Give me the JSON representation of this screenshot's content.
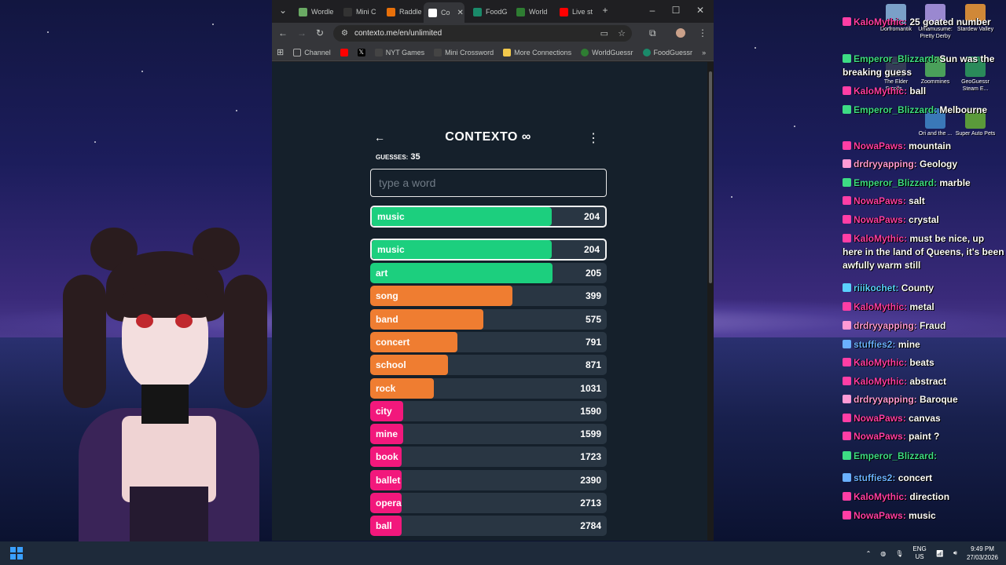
{
  "browser": {
    "tabs": [
      {
        "label": "Wordle",
        "color": "#6aaa64"
      },
      {
        "label": "Mini C",
        "color": "#333333"
      },
      {
        "label": "Raddle",
        "color": "#e8700a"
      },
      {
        "label": "Co",
        "color": "#ffffff"
      },
      {
        "label": "FoodG",
        "color": "#1a8a6a"
      },
      {
        "label": "World",
        "color": "#2e7d32"
      },
      {
        "label": "Live st",
        "color": "#ff0000"
      }
    ],
    "url": "contexto.me/en/unlimited",
    "bookmarks": [
      {
        "label": "Channel",
        "color": "#777777"
      },
      {
        "label": "",
        "color": "#ff0000"
      },
      {
        "label": "",
        "color": "#000000"
      },
      {
        "label": "NYT Games",
        "color": "#222222"
      },
      {
        "label": "Mini Crossword",
        "color": "#222222"
      },
      {
        "label": "More Connections",
        "color": "#f2c94c"
      },
      {
        "label": "WorldGuessr",
        "color": "#2e7d32"
      },
      {
        "label": "FoodGuessr",
        "color": "#1a8a6a"
      }
    ]
  },
  "app": {
    "title": "CONTEXTO ∞",
    "guesses_label": "GUESSES:",
    "guesses_count": "35",
    "input_placeholder": "type a word",
    "last_guess": {
      "word": "music",
      "rank": "204",
      "fill": 0.77,
      "color": "#1ccf7e"
    },
    "guesses": [
      {
        "word": "music",
        "rank": "204",
        "fill": 0.77,
        "color": "#1ccf7e",
        "highlight": true
      },
      {
        "word": "art",
        "rank": "205",
        "fill": 0.77,
        "color": "#1ccf7e"
      },
      {
        "word": "song",
        "rank": "399",
        "fill": 0.6,
        "color": "#ef7d31"
      },
      {
        "word": "band",
        "rank": "575",
        "fill": 0.48,
        "color": "#ef7d31"
      },
      {
        "word": "concert",
        "rank": "791",
        "fill": 0.37,
        "color": "#ef7d31"
      },
      {
        "word": "school",
        "rank": "871",
        "fill": 0.33,
        "color": "#ef7d31"
      },
      {
        "word": "rock",
        "rank": "1031",
        "fill": 0.27,
        "color": "#ef7d31"
      },
      {
        "word": "city",
        "rank": "1590",
        "fill": 0.14,
        "color": "#f2187c"
      },
      {
        "word": "mine",
        "rank": "1599",
        "fill": 0.14,
        "color": "#f2187c"
      },
      {
        "word": "book",
        "rank": "1723",
        "fill": 0.12,
        "color": "#f2187c"
      },
      {
        "word": "ballet",
        "rank": "2390",
        "fill": 0.05,
        "color": "#f2187c"
      },
      {
        "word": "opera",
        "rank": "2713",
        "fill": 0.04,
        "color": "#f2187c"
      },
      {
        "word": "ball",
        "rank": "2784",
        "fill": 0.03,
        "color": "#f2187c"
      }
    ]
  },
  "chat": [
    {
      "user": "KaloMythic:",
      "text": "25 goated number",
      "color": "#ff3ea5"
    },
    {
      "user": "Emperor_Blizzard:",
      "text": "Sun was the breaking guess",
      "color": "#3ddc84"
    },
    {
      "user": "KaloMythic:",
      "text": "ball",
      "color": "#ff3ea5"
    },
    {
      "user": "Emperor_Blizzard:",
      "text": "Melbourne",
      "color": "#3ddc84"
    },
    {
      "user": "NowaPaws:",
      "text": "mountain",
      "color": "#ff3ea5"
    },
    {
      "user": "drdryyapping:",
      "text": "Geology",
      "color": "#ff9ad5"
    },
    {
      "user": "Emperor_Blizzard:",
      "text": "marble",
      "color": "#3ddc84"
    },
    {
      "user": "NowaPaws:",
      "text": "salt",
      "color": "#ff3ea5"
    },
    {
      "user": "NowaPaws:",
      "text": "crystal",
      "color": "#ff3ea5"
    },
    {
      "user": "KaloMythic:",
      "text": "must be nice, up here in the land of Queens, it's been awfully warm still",
      "color": "#ff3ea5"
    },
    {
      "user": "riiikochet:",
      "text": "County",
      "color": "#5ad1ff"
    },
    {
      "user": "KaloMythic:",
      "text": "metal",
      "color": "#ff3ea5"
    },
    {
      "user": "drdryyapping:",
      "text": "Fraud",
      "color": "#ff9ad5"
    },
    {
      "user": "stuffies2:",
      "text": "mine",
      "color": "#6ab0ff"
    },
    {
      "user": "KaloMythic:",
      "text": "beats",
      "color": "#ff3ea5"
    },
    {
      "user": "KaloMythic:",
      "text": "abstract",
      "color": "#ff3ea5"
    },
    {
      "user": "drdryyapping:",
      "text": "Baroque",
      "color": "#ff9ad5"
    },
    {
      "user": "NowaPaws:",
      "text": "canvas",
      "color": "#ff3ea5"
    },
    {
      "user": "NowaPaws:",
      "text": "paint ?",
      "color": "#ff3ea5"
    },
    {
      "user": "Emperor_Blizzard:",
      "text": "",
      "color": "#3ddc84"
    },
    {
      "user": "stuffies2:",
      "text": "concert",
      "color": "#6ab0ff"
    },
    {
      "user": "KaloMythic:",
      "text": "direction",
      "color": "#ff3ea5"
    },
    {
      "user": "NowaPaws:",
      "text": "music",
      "color": "#ff3ea5"
    }
  ],
  "desktop_icons": [
    {
      "label": "Dorfromantik",
      "color": "#7aa0c8"
    },
    {
      "label": "Umamusume: Pretty Derby",
      "color": "#9a88d0"
    },
    {
      "label": "Stardew Valley",
      "color": "#d08838"
    },
    {
      "label": "The Elder Scrolls...",
      "color": "#333a55"
    },
    {
      "label": "Zoommines",
      "color": "#4aa05a"
    },
    {
      "label": "GeoGuessr Steam E...",
      "color": "#2a8a5a"
    },
    {
      "label": "Ori and the ...",
      "color": "#3a78b8"
    },
    {
      "label": "Super Auto Pets",
      "color": "#5a9a3a"
    }
  ],
  "taskbar": {
    "lang_top": "ENG",
    "lang_bottom": "US",
    "time": "9:49 PM",
    "date": "27/03/2026"
  }
}
